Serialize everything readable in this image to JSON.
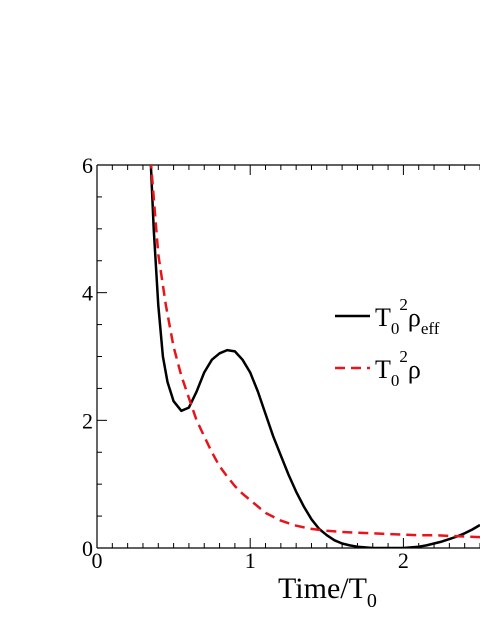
{
  "chart_data": {
    "type": "line",
    "title": "",
    "xlabel": {
      "main": "Time/T",
      "sub": "0"
    },
    "ylabel": "",
    "xlim": [
      0,
      2.5
    ],
    "ylim": [
      0,
      6
    ],
    "xticks": [
      0,
      1,
      2
    ],
    "yticks": [
      0,
      2,
      4,
      6
    ],
    "grid": false,
    "legend_position": "right",
    "series": [
      {
        "legend": {
          "base": "T",
          "sub1": "0",
          "sup": "2",
          "sym": "ρ",
          "sub2": "eff"
        },
        "color": "#000000",
        "dash": "solid",
        "x": [
          0.35,
          0.37,
          0.4,
          0.43,
          0.46,
          0.5,
          0.55,
          0.6,
          0.65,
          0.7,
          0.75,
          0.8,
          0.85,
          0.9,
          0.95,
          1.0,
          1.05,
          1.1,
          1.15,
          1.2,
          1.25,
          1.3,
          1.35,
          1.4,
          1.45,
          1.5,
          1.55,
          1.6,
          1.65,
          1.7,
          1.75,
          1.8,
          1.85,
          1.9,
          1.95,
          2.0,
          2.05,
          2.1,
          2.15,
          2.2,
          2.25,
          2.3,
          2.35,
          2.4,
          2.45,
          2.5
        ],
        "y": [
          6.1,
          5.0,
          3.8,
          3.0,
          2.6,
          2.3,
          2.15,
          2.2,
          2.45,
          2.75,
          2.95,
          3.05,
          3.1,
          3.08,
          2.95,
          2.75,
          2.45,
          2.1,
          1.75,
          1.45,
          1.15,
          0.88,
          0.65,
          0.45,
          0.3,
          0.2,
          0.12,
          0.07,
          0.04,
          0.02,
          0.01,
          0.0,
          0.0,
          0.0,
          0.0,
          0.0,
          0.01,
          0.02,
          0.04,
          0.07,
          0.1,
          0.14,
          0.18,
          0.23,
          0.29,
          0.36
        ]
      },
      {
        "legend": {
          "base": "T",
          "sub1": "0",
          "sup": "2",
          "sym": "ρ",
          "sub2": ""
        },
        "color": "#e8141a",
        "dash": "dashed",
        "x": [
          0.35,
          0.4,
          0.45,
          0.5,
          0.55,
          0.6,
          0.65,
          0.7,
          0.75,
          0.8,
          0.85,
          0.9,
          0.95,
          1.0,
          1.05,
          1.1,
          1.2,
          1.3,
          1.4,
          1.5,
          1.6,
          1.7,
          1.8,
          1.9,
          2.0,
          2.1,
          2.2,
          2.3,
          2.4,
          2.5
        ],
        "y": [
          6.1,
          4.6,
          3.8,
          3.15,
          2.7,
          2.35,
          2.0,
          1.75,
          1.5,
          1.28,
          1.12,
          0.97,
          0.85,
          0.75,
          0.65,
          0.55,
          0.43,
          0.35,
          0.3,
          0.27,
          0.25,
          0.24,
          0.23,
          0.22,
          0.21,
          0.2,
          0.2,
          0.19,
          0.18,
          0.17
        ]
      }
    ]
  }
}
